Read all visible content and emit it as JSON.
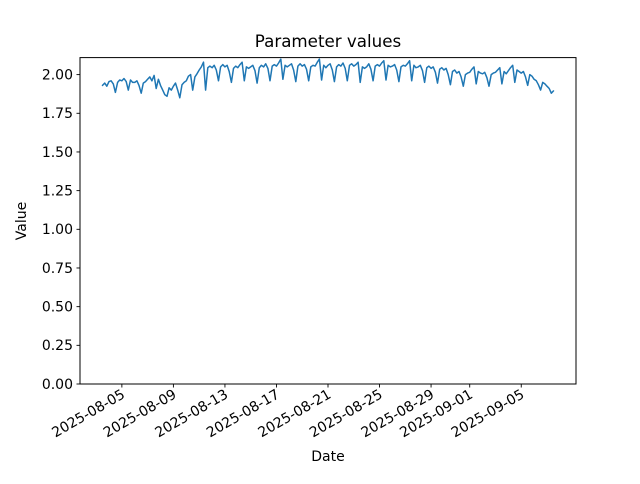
{
  "chart_data": {
    "type": "line",
    "title": "Parameter values",
    "xlabel": "Date",
    "ylabel": "Value",
    "grid": false,
    "legend": null,
    "background_color": "#ffffff",
    "line_color": "#1f77b4",
    "axis_color": "#000000",
    "x_tick_labels": [
      "2025-08-05",
      "2025-08-09",
      "2025-08-13",
      "2025-08-17",
      "2025-08-21",
      "2025-08-25",
      "2025-08-29",
      "2025-09-01",
      "2025-09-05"
    ],
    "x_tick_offsets_days": [
      0,
      4,
      8,
      12,
      16,
      20,
      24,
      27,
      31
    ],
    "xlim_days": [
      -3.25,
      35.25
    ],
    "y_tick_labels": [
      "0.00",
      "0.25",
      "0.50",
      "0.75",
      "1.00",
      "1.25",
      "1.50",
      "1.75",
      "2.00"
    ],
    "y_tick_values": [
      0,
      0.25,
      0.5,
      0.75,
      1.0,
      1.25,
      1.5,
      1.75,
      2.0
    ],
    "ylim": [
      0,
      2.11
    ],
    "series": [
      {
        "name": "Parameter values",
        "start_date": "2025-08-03 12:00",
        "end_date": "2025-09-07 12:00",
        "start_offset_days": -1.5,
        "step_days": 0.1666667,
        "values": [
          1.93,
          1.945,
          1.925,
          1.955,
          1.96,
          1.94,
          1.885,
          1.95,
          1.965,
          1.96,
          1.975,
          1.955,
          1.9,
          1.965,
          1.95,
          1.95,
          1.96,
          1.93,
          1.88,
          1.945,
          1.955,
          1.97,
          1.985,
          1.96,
          1.995,
          1.91,
          1.97,
          1.93,
          1.9,
          1.87,
          1.86,
          1.915,
          1.9,
          1.925,
          1.945,
          1.9,
          1.85,
          1.935,
          1.95,
          1.96,
          1.99,
          2.0,
          1.9,
          1.985,
          2.005,
          2.03,
          2.05,
          2.08,
          1.9,
          2.045,
          2.055,
          2.045,
          2.06,
          2.03,
          1.96,
          2.05,
          2.065,
          2.05,
          2.06,
          2.02,
          1.95,
          2.04,
          2.055,
          2.045,
          2.065,
          2.08,
          1.96,
          2.05,
          2.04,
          2.05,
          2.06,
          2.025,
          1.945,
          2.045,
          2.06,
          2.05,
          2.07,
          2.04,
          1.96,
          2.055,
          2.065,
          2.055,
          2.075,
          2.1,
          1.97,
          2.06,
          2.05,
          2.06,
          2.07,
          2.03,
          1.955,
          2.055,
          2.07,
          2.055,
          2.065,
          2.035,
          1.96,
          2.05,
          2.06,
          2.055,
          2.08,
          2.1,
          1.965,
          2.06,
          2.045,
          2.06,
          2.07,
          2.03,
          1.955,
          2.05,
          2.065,
          2.055,
          2.075,
          2.04,
          1.96,
          2.06,
          2.07,
          2.055,
          2.065,
          2.08,
          1.95,
          2.05,
          2.04,
          2.05,
          2.07,
          2.035,
          1.96,
          2.055,
          2.065,
          2.055,
          2.075,
          2.09,
          1.965,
          2.06,
          2.05,
          2.055,
          2.065,
          2.03,
          1.955,
          2.05,
          2.06,
          2.055,
          2.07,
          2.09,
          1.96,
          2.06,
          2.045,
          2.05,
          2.06,
          2.025,
          1.95,
          2.045,
          2.055,
          2.04,
          2.05,
          2.015,
          1.945,
          2.035,
          2.045,
          2.03,
          2.04,
          2.0,
          1.935,
          2.02,
          2.03,
          2.01,
          2.02,
          1.985,
          1.925,
          2.0,
          2.01,
          2.015,
          2.035,
          2.05,
          1.94,
          2.02,
          2.01,
          2.005,
          2.015,
          1.98,
          1.925,
          2.0,
          2.01,
          2.015,
          2.03,
          2.045,
          1.94,
          2.02,
          2.005,
          2.025,
          2.045,
          2.06,
          1.95,
          2.03,
          2.02,
          2.01,
          2.02,
          1.985,
          1.93,
          2.0,
          1.99,
          1.97,
          1.96,
          1.935,
          1.9,
          1.95,
          1.94,
          1.925,
          1.91,
          1.88,
          1.895
        ]
      }
    ]
  }
}
